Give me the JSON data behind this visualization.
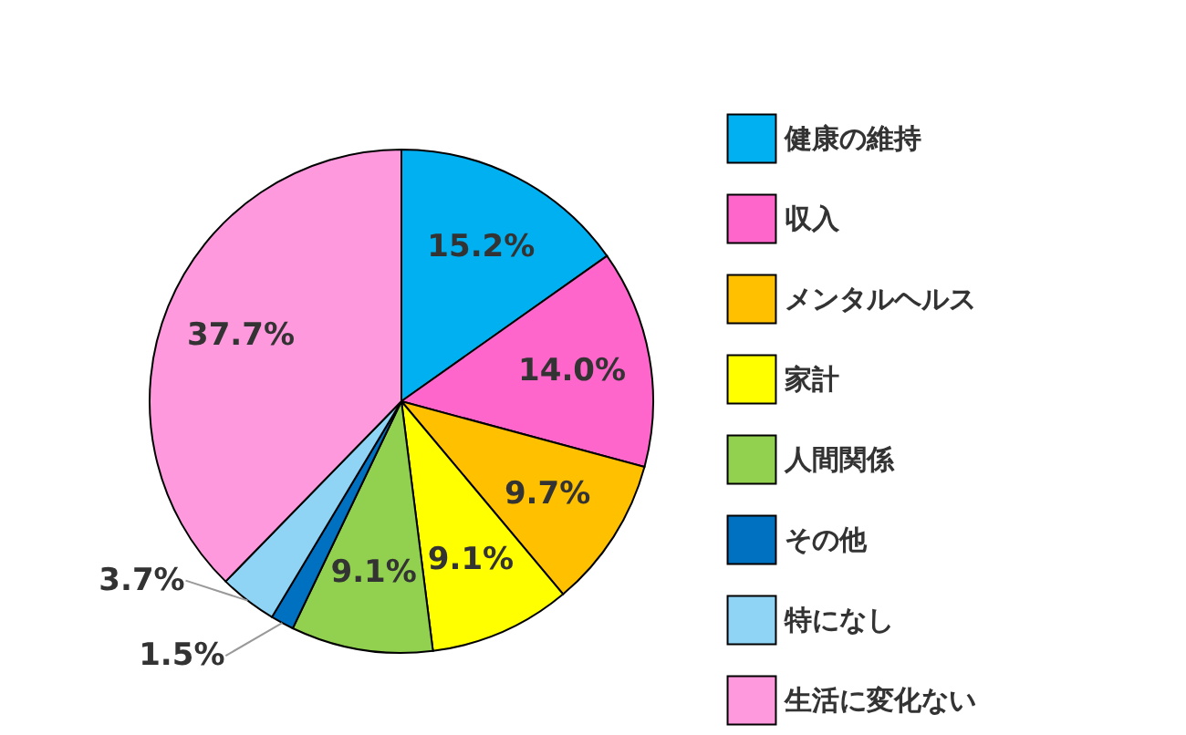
{
  "chart_data": {
    "type": "pie",
    "categories": [
      "健康の維持",
      "収入",
      "メンタルヘルス",
      "家計",
      "人間関係",
      "その他",
      "特になし",
      "生活に変化ない"
    ],
    "values": [
      15.2,
      14.0,
      9.7,
      9.1,
      9.1,
      1.5,
      3.7,
      37.7
    ],
    "colors": [
      "#00b0f0",
      "#ff66cc",
      "#ffc000",
      "#ffff00",
      "#92d050",
      "#0070c0",
      "#8fd3f5",
      "#ff99dd"
    ],
    "value_labels": [
      "15.2%",
      "14.0%",
      "9.7%",
      "9.1%",
      "9.1%",
      "1.5%",
      "3.7%",
      "37.7%"
    ],
    "legend": "right"
  }
}
